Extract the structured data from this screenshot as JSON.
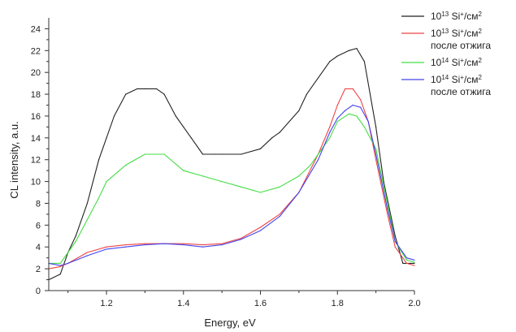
{
  "chart_data": {
    "type": "line",
    "xlabel": "Energy, eV",
    "ylabel": "CL intensity, a.u.",
    "xlim": [
      1.05,
      2.0
    ],
    "ylim": [
      0,
      25
    ],
    "xticks": [
      1.2,
      1.4,
      1.6,
      1.8,
      2.0
    ],
    "xtick_labels": [
      "1.2",
      "1.4",
      "1.6",
      "1.8",
      "2.0"
    ],
    "yticks": [
      0,
      2,
      4,
      6,
      8,
      10,
      12,
      14,
      16,
      18,
      20,
      22,
      24
    ],
    "ytick_labels": [
      "0",
      "2",
      "4",
      "6",
      "8",
      "10",
      "12",
      "14",
      "16",
      "18",
      "20",
      "22",
      "24"
    ],
    "grid": false,
    "legend_position": "top-right",
    "series": [
      {
        "name_base": "10",
        "name_exp": "13",
        "name_unit": " Si",
        "name_sup": "+",
        "name_tail": "/см",
        "name_tail_sup": "2",
        "name_line2": "",
        "color": "#222222",
        "x": [
          1.05,
          1.08,
          1.1,
          1.12,
          1.15,
          1.18,
          1.2,
          1.22,
          1.25,
          1.28,
          1.3,
          1.33,
          1.35,
          1.38,
          1.4,
          1.42,
          1.45,
          1.48,
          1.5,
          1.55,
          1.6,
          1.63,
          1.65,
          1.7,
          1.72,
          1.75,
          1.78,
          1.8,
          1.83,
          1.85,
          1.87,
          1.9,
          1.92,
          1.95,
          1.97,
          2.0
        ],
        "y": [
          1.0,
          1.5,
          3.5,
          5.0,
          8.0,
          12.0,
          14.0,
          16.0,
          18.0,
          18.5,
          18.5,
          18.5,
          18.0,
          16.0,
          15.0,
          14.0,
          12.5,
          12.5,
          12.5,
          12.5,
          13.0,
          14.0,
          14.5,
          16.5,
          18.0,
          19.5,
          21.0,
          21.5,
          22.0,
          22.2,
          21.0,
          15.0,
          10.0,
          5.0,
          2.5,
          2.5
        ]
      },
      {
        "name_base": "10",
        "name_exp": "13",
        "name_unit": " Si",
        "name_sup": "+",
        "name_tail": "/см",
        "name_tail_sup": "2",
        "name_line2": "после отжига",
        "color": "#ee4444",
        "x": [
          1.05,
          1.08,
          1.1,
          1.15,
          1.2,
          1.25,
          1.3,
          1.35,
          1.4,
          1.45,
          1.5,
          1.55,
          1.6,
          1.65,
          1.7,
          1.75,
          1.78,
          1.8,
          1.82,
          1.84,
          1.86,
          1.88,
          1.9,
          1.93,
          1.95,
          1.98,
          2.0
        ],
        "y": [
          2.0,
          2.2,
          2.5,
          3.5,
          4.0,
          4.2,
          4.3,
          4.3,
          4.3,
          4.2,
          4.3,
          4.8,
          5.8,
          7.0,
          9.0,
          12.5,
          15.0,
          17.0,
          18.5,
          18.5,
          17.5,
          15.5,
          12.0,
          7.0,
          4.0,
          2.5,
          2.3
        ]
      },
      {
        "name_base": "10",
        "name_exp": "14",
        "name_unit": " Si",
        "name_sup": "+",
        "name_tail": "/см",
        "name_tail_sup": "2",
        "name_line2": "",
        "color": "#44dd44",
        "x": [
          1.05,
          1.08,
          1.1,
          1.12,
          1.15,
          1.18,
          1.2,
          1.25,
          1.3,
          1.35,
          1.4,
          1.45,
          1.5,
          1.55,
          1.6,
          1.65,
          1.7,
          1.73,
          1.75,
          1.78,
          1.8,
          1.83,
          1.85,
          1.87,
          1.9,
          1.93,
          1.95,
          1.98,
          2.0
        ],
        "y": [
          2.5,
          2.5,
          3.5,
          4.5,
          6.5,
          8.5,
          10.0,
          11.5,
          12.5,
          12.5,
          11.0,
          10.5,
          10.0,
          9.5,
          9.0,
          9.5,
          10.5,
          11.5,
          12.5,
          14.0,
          15.5,
          16.2,
          16.0,
          15.0,
          13.0,
          8.0,
          4.5,
          2.8,
          2.6
        ]
      },
      {
        "name_base": "10",
        "name_exp": "14",
        "name_unit": " Si",
        "name_sup": "+",
        "name_tail": "/см",
        "name_tail_sup": "2",
        "name_line2": "после отжига",
        "color": "#4444ee",
        "x": [
          1.05,
          1.08,
          1.1,
          1.15,
          1.2,
          1.25,
          1.3,
          1.35,
          1.4,
          1.45,
          1.5,
          1.55,
          1.6,
          1.65,
          1.7,
          1.75,
          1.78,
          1.8,
          1.82,
          1.84,
          1.86,
          1.88,
          1.9,
          1.93,
          1.95,
          1.98,
          2.0
        ],
        "y": [
          2.5,
          2.3,
          2.5,
          3.2,
          3.8,
          4.0,
          4.2,
          4.3,
          4.2,
          4.0,
          4.2,
          4.7,
          5.5,
          6.8,
          9.0,
          12.0,
          14.5,
          15.8,
          16.5,
          17.0,
          16.8,
          15.5,
          12.5,
          7.5,
          4.5,
          3.0,
          2.8
        ]
      }
    ]
  }
}
